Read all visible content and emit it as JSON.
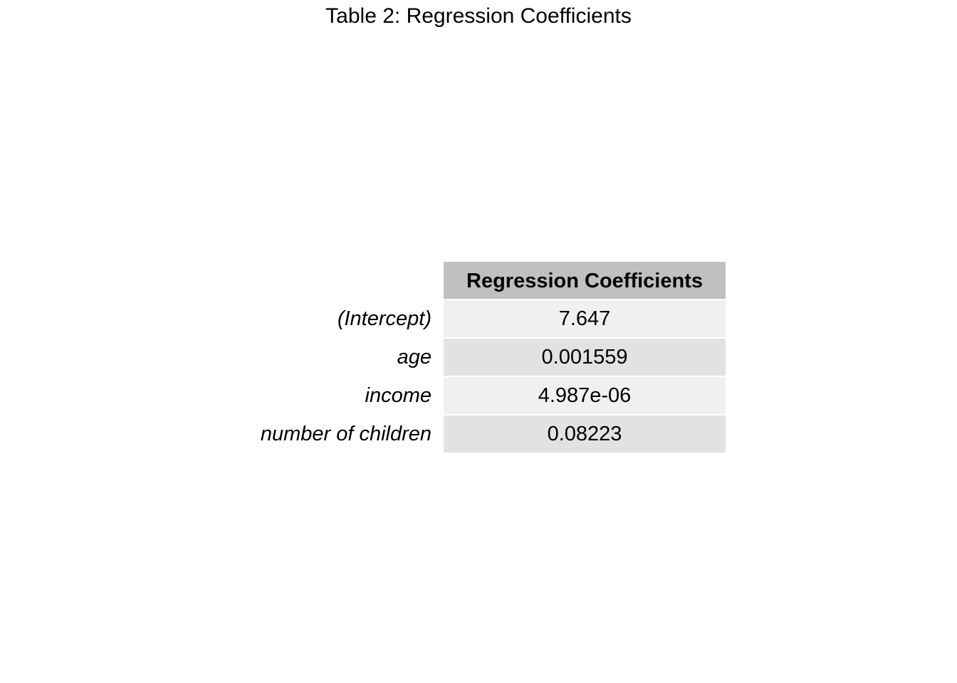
{
  "title": "Table 2: Regression Coefficients",
  "colors": {
    "header_bg": "#c0c0c0",
    "row_light": "#f0f0f0",
    "row_dark": "#e2e2e2",
    "text": "#000000"
  },
  "chart_data": {
    "type": "table",
    "title": "Table 2: Regression Coefficients",
    "columns": [
      "Regression Coefficients"
    ],
    "rows": [
      {
        "label": "(Intercept)",
        "value": "7.647"
      },
      {
        "label": "age",
        "value": "0.001559"
      },
      {
        "label": "income",
        "value": "4.987e-06"
      },
      {
        "label": "number of children",
        "value": "0.08223"
      }
    ]
  }
}
